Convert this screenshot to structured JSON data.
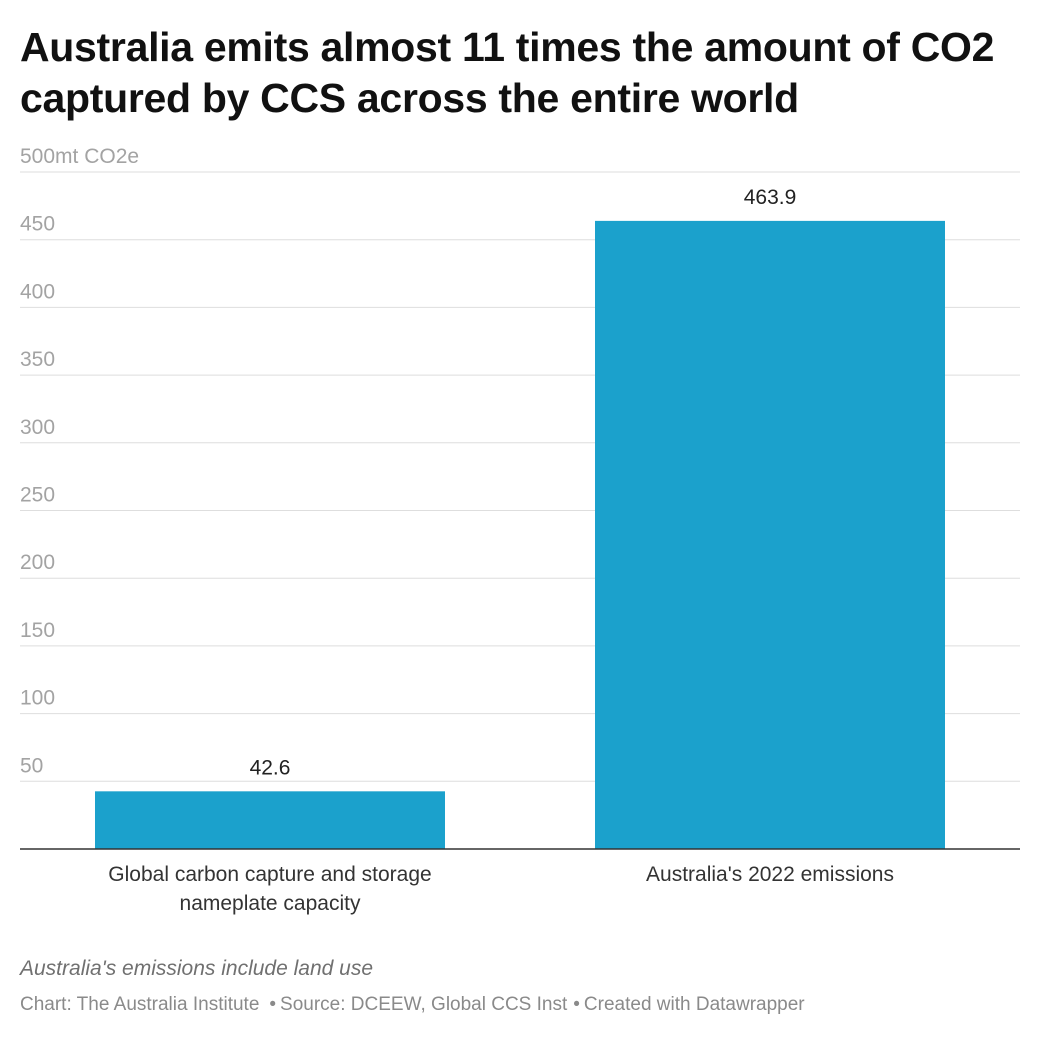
{
  "chart_data": {
    "type": "bar",
    "title": "Australia emits almost 11 times the amount of CO2 captured by CCS across the entire world",
    "unit_label": "500mt CO2e",
    "ylim": [
      0,
      500
    ],
    "y_ticks": [
      50,
      100,
      150,
      200,
      250,
      300,
      350,
      400,
      450,
      500
    ],
    "y_tick_labels": [
      "50",
      "100",
      "150",
      "200",
      "250",
      "300",
      "350",
      "400",
      "450",
      "500mt CO2e"
    ],
    "categories": [
      [
        "Global carbon capture and storage",
        "nameplate capacity"
      ],
      [
        "Australia's 2022 emissions"
      ]
    ],
    "values": [
      42.6,
      463.9
    ],
    "value_labels": [
      "42.6",
      "463.9"
    ],
    "bar_color": "#1ba1cc",
    "grid": true,
    "note": "Australia's emissions include land use",
    "credit": "Chart: The Australia Institute",
    "source": "Source: DCEEW, Global CCS Inst",
    "created_with": "Created with Datawrapper"
  }
}
